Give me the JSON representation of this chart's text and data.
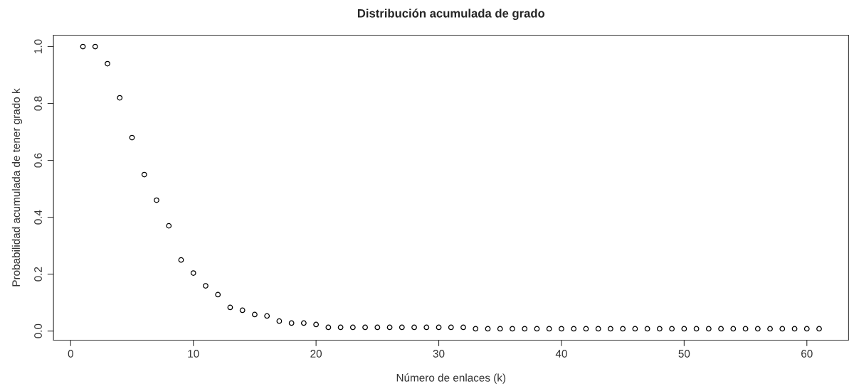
{
  "chart_data": {
    "type": "scatter",
    "title": "Distribución acumulada de grado",
    "xlabel": "Número de enlaces (k)",
    "ylabel": "Probabilidad acumulada de tener grado k",
    "x": [
      1,
      2,
      3,
      4,
      5,
      6,
      7,
      8,
      9,
      10,
      11,
      12,
      13,
      14,
      15,
      16,
      17,
      18,
      19,
      20,
      21,
      22,
      23,
      24,
      25,
      26,
      27,
      28,
      29,
      30,
      31,
      32,
      33,
      34,
      35,
      36,
      37,
      38,
      39,
      40,
      41,
      42,
      43,
      44,
      45,
      46,
      47,
      48,
      49,
      50,
      51,
      52,
      53,
      54,
      55,
      56,
      57,
      58,
      59,
      60,
      61
    ],
    "values": [
      1.0,
      1.0,
      0.94,
      0.82,
      0.68,
      0.55,
      0.46,
      0.37,
      0.25,
      0.204,
      0.159,
      0.128,
      0.083,
      0.073,
      0.058,
      0.053,
      0.035,
      0.028,
      0.028,
      0.023,
      0.013,
      0.013,
      0.013,
      0.013,
      0.013,
      0.013,
      0.013,
      0.013,
      0.013,
      0.013,
      0.013,
      0.013,
      0.008,
      0.008,
      0.008,
      0.008,
      0.008,
      0.008,
      0.008,
      0.008,
      0.008,
      0.008,
      0.008,
      0.008,
      0.008,
      0.008,
      0.008,
      0.008,
      0.008,
      0.008,
      0.008,
      0.008,
      0.008,
      0.008,
      0.008,
      0.008,
      0.008,
      0.008,
      0.008,
      0.008,
      0.008
    ],
    "color": "#000000",
    "marker": "circle",
    "xlim": [
      -1.4,
      63.4
    ],
    "ylim": [
      -0.032,
      1.04
    ],
    "xticks": [
      0,
      10,
      20,
      30,
      40,
      50,
      60
    ],
    "yticks": [
      {
        "value": 0,
        "label": "0.0"
      },
      {
        "value": 0.2,
        "label": "0.2"
      },
      {
        "value": 0.4,
        "label": "0.4"
      },
      {
        "value": 0.6,
        "label": "0.6"
      },
      {
        "value": 0.8,
        "label": "0.8"
      },
      {
        "value": 1,
        "label": "1.0"
      }
    ],
    "grid": false
  }
}
